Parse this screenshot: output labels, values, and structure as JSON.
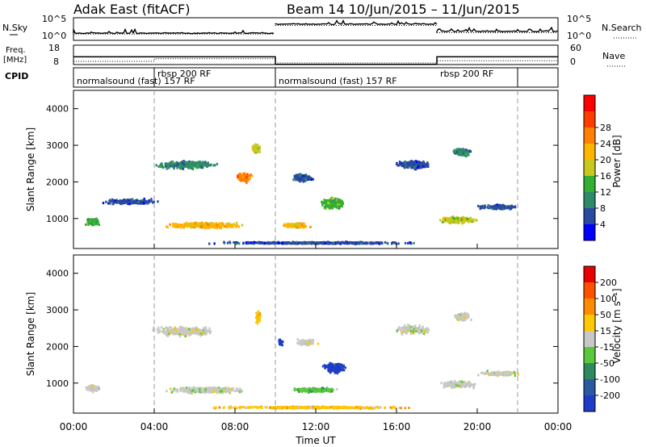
{
  "header": {
    "station": "Adak East (fitACF)",
    "beam_date": "Beam 14  10/Jun/2015 – 11/Jun/2015"
  },
  "chart_data": [
    {
      "type": "line",
      "panel": "noise",
      "left_label": "N.Sky",
      "right_label": "N.Search",
      "left_ticks": [
        "10^5",
        "10^0"
      ],
      "right_ticks": [
        "10^5",
        "10^0"
      ],
      "series": [
        {
          "name": "N.Sky",
          "style": "solid",
          "segments": [
            {
              "x": [
                0,
                10
              ],
              "y": 0.68
            },
            {
              "x": [
                10,
                18
              ],
              "y": 0.28
            },
            {
              "x": [
                18,
                24
              ],
              "y": 0.6
            }
          ]
        },
        {
          "name": "N.Search",
          "style": "dotted",
          "segments": [
            {
              "x": [
                0,
                10
              ],
              "y": 0.72
            },
            {
              "x": [
                10,
                18
              ],
              "y": 0.34
            },
            {
              "x": [
                18,
                24
              ],
              "y": 0.66
            }
          ]
        }
      ]
    },
    {
      "type": "line",
      "panel": "frequency",
      "left_label": "Freq.",
      "left_unit": "[MHz]",
      "right_label": "Nave",
      "left_ticks": [
        "18",
        "8"
      ],
      "right_ticks": [
        "60",
        "0"
      ],
      "series": [
        {
          "name": "Freq.",
          "style": "solid",
          "points": [
            [
              0,
              12
            ],
            [
              10,
              12
            ],
            [
              10,
              8.1
            ],
            [
              18,
              8.1
            ],
            [
              18,
              12
            ],
            [
              24,
              12
            ]
          ]
        },
        {
          "name": "Nave",
          "style": "dotted",
          "points": [
            [
              0,
              10
            ],
            [
              4,
              10
            ],
            [
              4,
              18
            ],
            [
              10,
              18
            ],
            [
              10,
              5
            ],
            [
              18,
              5
            ],
            [
              18,
              12
            ],
            [
              24,
              12
            ]
          ]
        }
      ]
    },
    {
      "type": "table",
      "panel": "cpid",
      "label": "CPID",
      "entries": [
        {
          "text": "normalsound (fast) 157 RF",
          "start": 0.0,
          "end": 4.0,
          "row": "lower"
        },
        {
          "text": "rbsp 200 RF",
          "start": 4.0,
          "end": 10.0,
          "row": "upper"
        },
        {
          "text": "normalsound (fast) 157 RF",
          "start": 10.0,
          "end": 18.0,
          "row": "lower"
        },
        {
          "text": "rbsp 200 RF",
          "start": 18.0,
          "end": 22.0,
          "row": "upper"
        }
      ],
      "dividers": [
        4.0,
        10.0,
        22.0
      ]
    },
    {
      "type": "heatmap",
      "panel": "power",
      "ylabel": "Slant Range [km]",
      "yticks": [
        1000,
        2000,
        3000,
        4000
      ],
      "ylim": [
        180,
        4500
      ],
      "colorbar": {
        "label": "Power [dB]",
        "ticks": [
          "4",
          "8",
          "12",
          "16",
          "20",
          "24",
          "28"
        ],
        "colors": [
          "#0000ff",
          "#2a4aa0",
          "#2f8a6a",
          "#33b033",
          "#c8c81e",
          "#ffb400",
          "#ff8000",
          "#ff3c00",
          "#ff0000"
        ]
      },
      "blobs": [
        {
          "t": 5.5,
          "r": 2450,
          "dt": 3.6,
          "dr": 280,
          "c": 2,
          "n": 320
        },
        {
          "t": 8.4,
          "r": 2100,
          "dt": 0.9,
          "dr": 300,
          "c": 6,
          "n": 150
        },
        {
          "t": 9.0,
          "r": 2900,
          "dt": 0.6,
          "dr": 300,
          "c": 4,
          "n": 70
        },
        {
          "t": 6.5,
          "r": 800,
          "dt": 4.2,
          "dr": 180,
          "c": 5,
          "n": 420
        },
        {
          "t": 0.9,
          "r": 900,
          "dt": 0.9,
          "dr": 260,
          "c": 3,
          "n": 100
        },
        {
          "t": 2.8,
          "r": 1450,
          "dt": 3.2,
          "dr": 180,
          "c": 1,
          "n": 180
        },
        {
          "t": 11.3,
          "r": 2100,
          "dt": 1.3,
          "dr": 250,
          "c": 1,
          "n": 140
        },
        {
          "t": 12.8,
          "r": 1400,
          "dt": 1.4,
          "dr": 380,
          "c": 3,
          "n": 200
        },
        {
          "t": 11.0,
          "r": 800,
          "dt": 1.5,
          "dr": 150,
          "c": 5,
          "n": 180
        },
        {
          "t": 16.8,
          "r": 2450,
          "dt": 2.1,
          "dr": 320,
          "c": 1,
          "n": 200
        },
        {
          "t": 19.2,
          "r": 2800,
          "dt": 1.1,
          "dr": 250,
          "c": 2,
          "n": 130
        },
        {
          "t": 19.0,
          "r": 950,
          "dt": 2.0,
          "dr": 230,
          "c": 4,
          "n": 230
        },
        {
          "t": 21.0,
          "r": 1300,
          "dt": 2.4,
          "dr": 150,
          "c": 1,
          "n": 150
        },
        {
          "t": 12.0,
          "r": 320,
          "dt": 12.0,
          "dr": 70,
          "c": 1,
          "n": 420
        }
      ]
    },
    {
      "type": "heatmap",
      "panel": "velocity",
      "xlabel": "Time UT",
      "ylabel": "Slant Range [km]",
      "yticks": [
        1000,
        2000,
        3000,
        4000
      ],
      "ylim": [
        180,
        4500
      ],
      "xticks": [
        "00:00",
        "04:00",
        "08:00",
        "12:00",
        "16:00",
        "20:00",
        "00:00"
      ],
      "xlim_hours": [
        0,
        24
      ],
      "colorbar": {
        "label": "Velocity [m s⁻¹]",
        "ticks": [
          "200",
          "100",
          "50",
          "15",
          "-15",
          "-50",
          "-100",
          "-200"
        ],
        "colors": [
          "#1e3cc8",
          "#2a5aa0",
          "#2e8a5e",
          "#5ac83c",
          "#c8c8c8",
          "#ffc800",
          "#ff8c00",
          "#ff5000",
          "#e60000"
        ]
      },
      "blobs": [
        {
          "t": 5.5,
          "r": 2400,
          "dt": 3.6,
          "dr": 300,
          "c": 4,
          "n": 350
        },
        {
          "t": 6.5,
          "r": 800,
          "dt": 4.2,
          "dr": 180,
          "c": 4,
          "n": 420
        },
        {
          "t": 0.9,
          "r": 850,
          "dt": 0.9,
          "dr": 220,
          "c": 4,
          "n": 110
        },
        {
          "t": 9.1,
          "r": 2800,
          "dt": 0.3,
          "dr": 450,
          "c": 5,
          "n": 80
        },
        {
          "t": 10.2,
          "r": 2100,
          "dt": 0.3,
          "dr": 200,
          "c": 0,
          "n": 40
        },
        {
          "t": 11.5,
          "r": 2100,
          "dt": 1.2,
          "dr": 200,
          "c": 4,
          "n": 100
        },
        {
          "t": 12.9,
          "r": 1400,
          "dt": 1.4,
          "dr": 350,
          "c": 0,
          "n": 220
        },
        {
          "t": 11.9,
          "r": 800,
          "dt": 2.6,
          "dr": 130,
          "c": 3,
          "n": 260
        },
        {
          "t": 16.8,
          "r": 2450,
          "dt": 2.1,
          "dr": 320,
          "c": 4,
          "n": 200
        },
        {
          "t": 19.2,
          "r": 2800,
          "dt": 1.0,
          "dr": 250,
          "c": 4,
          "n": 120
        },
        {
          "t": 19.0,
          "r": 950,
          "dt": 2.0,
          "dr": 230,
          "c": 4,
          "n": 220
        },
        {
          "t": 21.0,
          "r": 1250,
          "dt": 2.4,
          "dr": 150,
          "c": 4,
          "n": 150
        },
        {
          "t": 12.0,
          "r": 320,
          "dt": 12.0,
          "dr": 70,
          "c": 5,
          "n": 380
        }
      ]
    }
  ]
}
